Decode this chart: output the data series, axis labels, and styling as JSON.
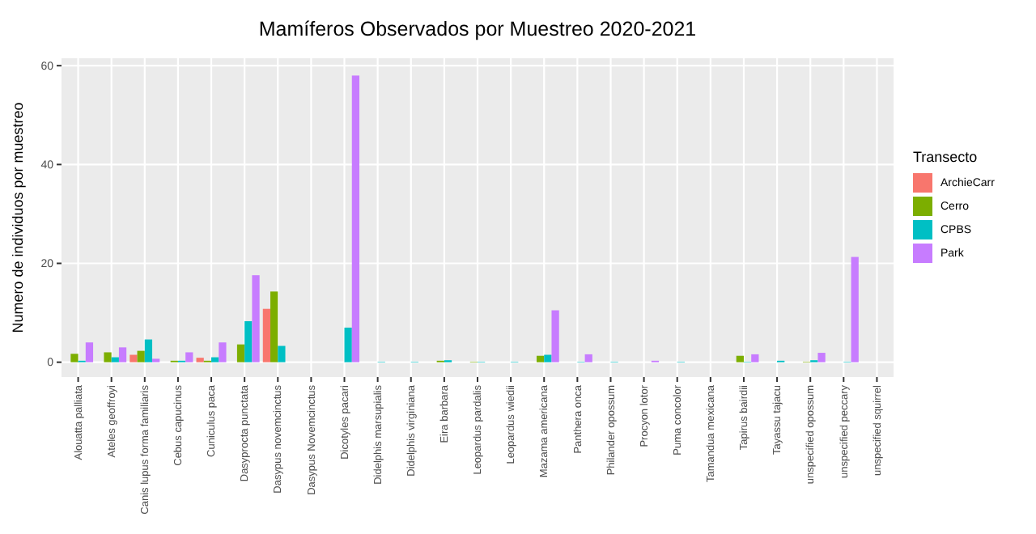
{
  "chart_data": {
    "type": "bar",
    "title": "Mamíferos Observados por Muestreo 2020-2021",
    "ylabel": "Numero de individuos por muestreo",
    "legend_title": "Transecto",
    "legend": "right",
    "grid": true,
    "categories": [
      "Alouatta palliata",
      "Ateles geoffroyi",
      "Canis lupus forma familiaris",
      "Cebus capucinus",
      "Cuniculus paca",
      "Dasyprocta punctata",
      "Dasypus novemcinctus",
      "Dasypus Novemcinctus",
      "Dicotyles pacari",
      "Didelphis marsupialis",
      "Didelphis virginiana",
      "Eira barbara",
      "Leopardus pardalis",
      "Leopardus wiedii",
      "Mazama americana",
      "Panthera onca",
      "Philander opossum",
      "Procyon lotor",
      "Puma concolor",
      "Tamandua mexicana",
      "Tapirus bairdii",
      "Tayassu tajacu",
      "unspecified opossum",
      "unspecified peccary",
      "unspecified squirrel"
    ],
    "ylim": [
      -3,
      61.5
    ],
    "yticks": [
      0,
      20,
      40,
      60
    ],
    "series": [
      {
        "name": "ArchieCarr",
        "color": "#f8766d",
        "values": [
          null,
          null,
          1.5,
          null,
          0.9,
          null,
          10.8,
          null,
          null,
          null,
          null,
          null,
          null,
          null,
          null,
          null,
          null,
          null,
          null,
          null,
          null,
          null,
          null,
          null,
          null
        ]
      },
      {
        "name": "Cerro",
        "color": "#7cae00",
        "values": [
          1.7,
          2,
          2.3,
          0.3,
          0.3,
          3.6,
          14.3,
          null,
          null,
          null,
          null,
          0.3,
          0.1,
          null,
          1.3,
          null,
          null,
          null,
          null,
          null,
          1.3,
          null,
          0.1,
          null,
          null
        ]
      },
      {
        "name": "CPBS",
        "color": "#00bfc4",
        "values": [
          0.3,
          1,
          4.6,
          0.3,
          1,
          8.3,
          3.3,
          null,
          7,
          0.1,
          0.1,
          0.4,
          0.1,
          0.1,
          1.5,
          0.1,
          0.1,
          null,
          0.1,
          null,
          0.1,
          0.3,
          0.4,
          0.1,
          null
        ]
      },
      {
        "name": "Park",
        "color": "#c77cff",
        "values": [
          4,
          3,
          0.7,
          2,
          4,
          17.6,
          null,
          null,
          58,
          null,
          null,
          null,
          null,
          null,
          10.5,
          1.6,
          null,
          0.3,
          null,
          null,
          1.6,
          null,
          1.9,
          21.3,
          null
        ]
      }
    ]
  }
}
